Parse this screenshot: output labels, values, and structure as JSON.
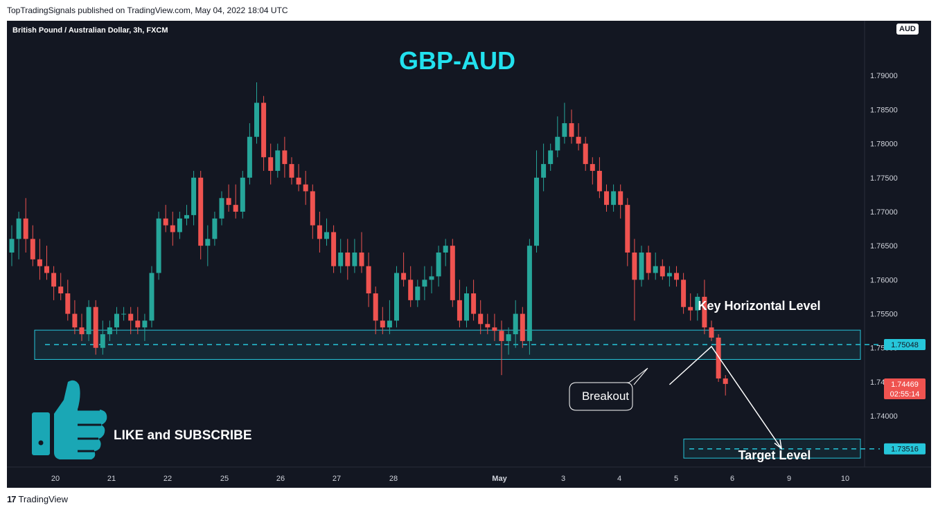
{
  "header": {
    "published_text": "TopTradingSignals published on TradingView.com, May 04, 2022 18:04 UTC"
  },
  "footer": {
    "brand_text": "TradingView",
    "logo_glyph": "17"
  },
  "chart_data": {
    "type": "candlestick",
    "symbol_label": "British Pound / Australian Dollar, 3h, FXCM",
    "title": "GBP-AUD",
    "currency_badge": "AUD",
    "y_ticks": [
      "1.79000",
      "1.78500",
      "1.78000",
      "1.77500",
      "1.77000",
      "1.76500",
      "1.76000",
      "1.75500",
      "1.75000",
      "1.74500",
      "1.74000"
    ],
    "ylim": [
      1.733,
      1.795
    ],
    "x_ticks": [
      "20",
      "21",
      "22",
      "25",
      "26",
      "27",
      "28",
      "May",
      "3",
      "4",
      "5",
      "6",
      "9",
      "10"
    ],
    "colors": {
      "up": "#26a69a",
      "down": "#ef5350",
      "background": "#131722",
      "level": "#26c6da",
      "annotation": "#ffffff"
    },
    "candles_ohlc": [
      [
        1.764,
        1.768,
        1.762,
        1.766
      ],
      [
        1.766,
        1.77,
        1.763,
        1.769
      ],
      [
        1.769,
        1.772,
        1.764,
        1.766
      ],
      [
        1.766,
        1.768,
        1.762,
        1.763
      ],
      [
        1.763,
        1.766,
        1.76,
        1.762
      ],
      [
        1.762,
        1.765,
        1.76,
        1.761
      ],
      [
        1.761,
        1.762,
        1.757,
        1.759
      ],
      [
        1.759,
        1.761,
        1.757,
        1.758
      ],
      [
        1.758,
        1.76,
        1.754,
        1.755
      ],
      [
        1.755,
        1.757,
        1.752,
        1.753
      ],
      [
        1.753,
        1.755,
        1.751,
        1.752
      ],
      [
        1.752,
        1.757,
        1.751,
        1.756
      ],
      [
        1.756,
        1.757,
        1.749,
        1.75
      ],
      [
        1.75,
        1.754,
        1.749,
        1.752
      ],
      [
        1.752,
        1.754,
        1.751,
        1.753
      ],
      [
        1.753,
        1.756,
        1.752,
        1.755
      ],
      [
        1.755,
        1.756,
        1.754,
        1.755
      ],
      [
        1.755,
        1.756,
        1.752,
        1.754
      ],
      [
        1.754,
        1.756,
        1.752,
        1.753
      ],
      [
        1.753,
        1.755,
        1.751,
        1.754
      ],
      [
        1.754,
        1.762,
        1.753,
        1.761
      ],
      [
        1.761,
        1.77,
        1.76,
        1.769
      ],
      [
        1.769,
        1.771,
        1.767,
        1.768
      ],
      [
        1.768,
        1.77,
        1.765,
        1.767
      ],
      [
        1.767,
        1.77,
        1.766,
        1.769
      ],
      [
        1.769,
        1.771,
        1.768,
        1.7695
      ],
      [
        1.7695,
        1.776,
        1.768,
        1.775
      ],
      [
        1.775,
        1.776,
        1.763,
        1.765
      ],
      [
        1.765,
        1.768,
        1.762,
        1.766
      ],
      [
        1.766,
        1.77,
        1.765,
        1.769
      ],
      [
        1.769,
        1.773,
        1.768,
        1.772
      ],
      [
        1.772,
        1.774,
        1.77,
        1.771
      ],
      [
        1.771,
        1.774,
        1.769,
        1.77
      ],
      [
        1.77,
        1.776,
        1.769,
        1.775
      ],
      [
        1.775,
        1.783,
        1.774,
        1.781
      ],
      [
        1.781,
        1.789,
        1.78,
        1.786
      ],
      [
        1.786,
        1.787,
        1.776,
        1.778
      ],
      [
        1.778,
        1.78,
        1.774,
        1.776
      ],
      [
        1.776,
        1.78,
        1.775,
        1.779
      ],
      [
        1.779,
        1.781,
        1.775,
        1.777
      ],
      [
        1.777,
        1.778,
        1.774,
        1.775
      ],
      [
        1.775,
        1.777,
        1.773,
        1.774
      ],
      [
        1.774,
        1.776,
        1.771,
        1.773
      ],
      [
        1.773,
        1.774,
        1.766,
        1.768
      ],
      [
        1.768,
        1.77,
        1.764,
        1.766
      ],
      [
        1.766,
        1.769,
        1.765,
        1.767
      ],
      [
        1.767,
        1.768,
        1.761,
        1.762
      ],
      [
        1.762,
        1.766,
        1.761,
        1.764
      ],
      [
        1.764,
        1.766,
        1.76,
        1.762
      ],
      [
        1.762,
        1.766,
        1.761,
        1.764
      ],
      [
        1.764,
        1.767,
        1.761,
        1.762
      ],
      [
        1.762,
        1.764,
        1.756,
        1.758
      ],
      [
        1.758,
        1.759,
        1.752,
        1.754
      ],
      [
        1.754,
        1.756,
        1.752,
        1.753
      ],
      [
        1.753,
        1.757,
        1.752,
        1.754
      ],
      [
        1.754,
        1.762,
        1.753,
        1.761
      ],
      [
        1.761,
        1.764,
        1.759,
        1.76
      ],
      [
        1.76,
        1.762,
        1.756,
        1.757
      ],
      [
        1.757,
        1.76,
        1.756,
        1.759
      ],
      [
        1.759,
        1.762,
        1.757,
        1.76
      ],
      [
        1.76,
        1.762,
        1.758,
        1.7605
      ],
      [
        1.7605,
        1.765,
        1.759,
        1.764
      ],
      [
        1.764,
        1.766,
        1.762,
        1.765
      ],
      [
        1.765,
        1.766,
        1.756,
        1.757
      ],
      [
        1.757,
        1.76,
        1.753,
        1.754
      ],
      [
        1.754,
        1.759,
        1.753,
        1.758
      ],
      [
        1.758,
        1.76,
        1.754,
        1.755
      ],
      [
        1.755,
        1.757,
        1.752,
        1.7535
      ],
      [
        1.7535,
        1.755,
        1.752,
        1.753
      ],
      [
        1.753,
        1.755,
        1.751,
        1.7525
      ],
      [
        1.7525,
        1.754,
        1.746,
        1.751
      ],
      [
        1.751,
        1.753,
        1.749,
        1.752
      ],
      [
        1.752,
        1.757,
        1.75,
        1.755
      ],
      [
        1.755,
        1.756,
        1.75,
        1.751
      ],
      [
        1.751,
        1.766,
        1.749,
        1.765
      ],
      [
        1.765,
        1.779,
        1.764,
        1.775
      ],
      [
        1.775,
        1.78,
        1.773,
        1.777
      ],
      [
        1.777,
        1.78,
        1.776,
        1.779
      ],
      [
        1.779,
        1.784,
        1.778,
        1.781
      ],
      [
        1.781,
        1.786,
        1.78,
        1.783
      ],
      [
        1.783,
        1.785,
        1.78,
        1.781
      ],
      [
        1.781,
        1.783,
        1.779,
        1.78
      ],
      [
        1.78,
        1.781,
        1.776,
        1.777
      ],
      [
        1.777,
        1.778,
        1.774,
        1.776
      ],
      [
        1.776,
        1.778,
        1.772,
        1.773
      ],
      [
        1.773,
        1.774,
        1.77,
        1.771
      ],
      [
        1.771,
        1.774,
        1.77,
        1.773
      ],
      [
        1.773,
        1.774,
        1.769,
        1.771
      ],
      [
        1.771,
        1.772,
        1.762,
        1.764
      ],
      [
        1.764,
        1.766,
        1.754,
        1.76
      ],
      [
        1.76,
        1.765,
        1.759,
        1.764
      ],
      [
        1.764,
        1.765,
        1.76,
        1.761
      ],
      [
        1.761,
        1.764,
        1.76,
        1.762
      ],
      [
        1.762,
        1.763,
        1.76,
        1.7605
      ],
      [
        1.7605,
        1.762,
        1.759,
        1.761
      ],
      [
        1.761,
        1.762,
        1.759,
        1.76
      ],
      [
        1.76,
        1.761,
        1.755,
        1.756
      ],
      [
        1.756,
        1.758,
        1.754,
        1.7555
      ],
      [
        1.7555,
        1.758,
        1.754,
        1.7575
      ],
      [
        1.7575,
        1.76,
        1.752,
        1.753
      ],
      [
        1.753,
        1.754,
        1.751,
        1.7515
      ],
      [
        1.7515,
        1.752,
        1.745,
        1.7455
      ],
      [
        1.7455,
        1.746,
        1.743,
        1.7447
      ]
    ],
    "key_level": {
      "label": "Key Horizontal Level",
      "value": 1.75048,
      "value_label": "1.75048",
      "zone": [
        1.7483,
        1.7526
      ]
    },
    "target_level": {
      "label": "Target Level",
      "value": 1.73516,
      "value_label": "1.73516",
      "zone": [
        1.7338,
        1.7366
      ]
    },
    "last_price": {
      "value": 1.74469,
      "value_label": "1.74469",
      "countdown": "02:55:14"
    },
    "breakout_label": "Breakout",
    "projection_path": [
      [
        94,
        1.7446
      ],
      [
        100,
        1.7502
      ],
      [
        110,
        1.7352
      ]
    ]
  },
  "promo": {
    "text": "LIKE and SUBSCRIBE",
    "icon": "thumbs-up-icon",
    "icon_color": "#1aa7b5"
  }
}
